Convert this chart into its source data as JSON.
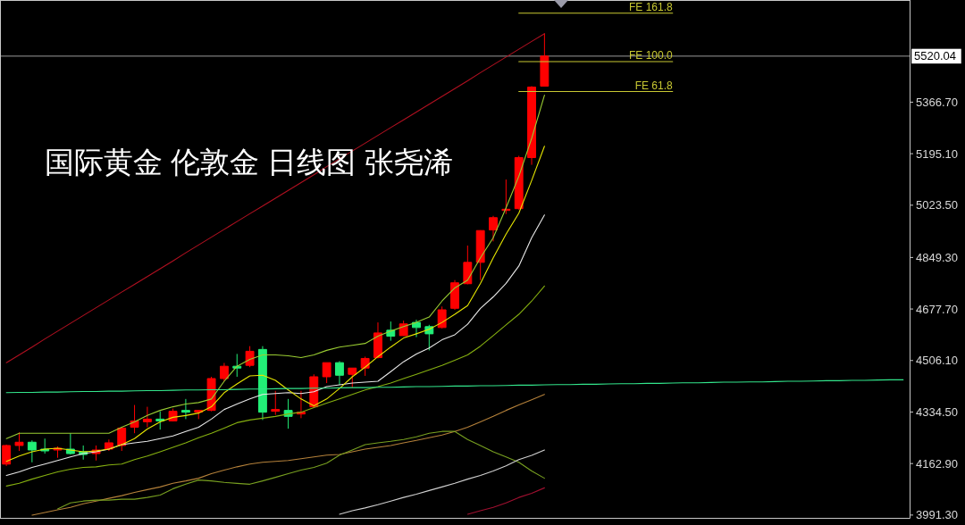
{
  "chart_data": {
    "type": "candlestick",
    "title": "国际黄金 伦敦金 日线图 张尧浠",
    "categories": [
      null,
      null,
      null,
      null,
      null,
      null,
      null,
      null,
      null,
      null,
      null,
      null,
      null,
      null,
      null,
      null,
      null,
      null,
      null,
      null,
      null,
      null,
      null,
      null,
      null,
      null,
      null,
      null,
      null,
      null,
      null,
      null,
      null,
      null,
      null,
      null,
      null,
      null,
      null,
      null,
      null,
      null,
      null,
      null,
      null,
      null,
      null,
      null,
      null,
      null,
      null,
      null,
      null,
      null,
      null,
      null,
      null,
      null,
      null,
      null,
      null,
      null,
      null,
      null,
      null,
      null,
      null,
      null,
      null,
      null,
      null
    ],
    "ohlc": [
      [
        4161,
        4226,
        4155,
        4223
      ],
      [
        4223,
        4267,
        4205,
        4234
      ],
      [
        4234,
        4240,
        4167,
        4208
      ],
      [
        4211,
        4246,
        4196,
        4205
      ],
      [
        4208,
        4220,
        4182,
        4214
      ],
      [
        4211,
        4264,
        4193,
        4196
      ],
      [
        4202,
        4223,
        4176,
        4193
      ],
      [
        4196,
        4223,
        4173,
        4208
      ],
      [
        4211,
        4243,
        4205,
        4232
      ],
      [
        4223,
        4284,
        4205,
        4281
      ],
      [
        4284,
        4358,
        4264,
        4305
      ],
      [
        4302,
        4352,
        4284,
        4311
      ],
      [
        4311,
        4337,
        4276,
        4305
      ],
      [
        4305,
        4346,
        4303,
        4337
      ],
      [
        4340,
        4378,
        4311,
        4334
      ],
      [
        4334,
        4340,
        4311,
        4340
      ],
      [
        4340,
        4452,
        4337,
        4446
      ],
      [
        4446,
        4498,
        4437,
        4487
      ],
      [
        4487,
        4528,
        4452,
        4481
      ],
      [
        4490,
        4554,
        4484,
        4537
      ],
      [
        4543,
        4554,
        4308,
        4334
      ],
      [
        4337,
        4405,
        4325,
        4343
      ],
      [
        4340,
        4378,
        4279,
        4320
      ],
      [
        4328,
        4405,
        4314,
        4334
      ],
      [
        4352,
        4460,
        4349,
        4452
      ],
      [
        4452,
        4499,
        4431,
        4499
      ],
      [
        4499,
        4504,
        4425,
        4457
      ],
      [
        4460,
        4481,
        4416,
        4481
      ],
      [
        4481,
        4519,
        4455,
        4513
      ],
      [
        4516,
        4633,
        4513,
        4598
      ],
      [
        4607,
        4636,
        4572,
        4587
      ],
      [
        4589,
        4639,
        4588,
        4628
      ],
      [
        4633,
        4642,
        4584,
        4616
      ],
      [
        4619,
        4625,
        4540,
        4595
      ],
      [
        4616,
        4686,
        4613,
        4675
      ],
      [
        4680,
        4774,
        4675,
        4765
      ],
      [
        4762,
        4889,
        4760,
        4833
      ],
      [
        4833,
        4940,
        4774,
        4939
      ],
      [
        4941,
        4988,
        4903,
        4982
      ],
      [
        5006,
        5109,
        4994,
        5010
      ],
      [
        5012,
        5188,
        5009,
        5182
      ],
      [
        5182,
        5420,
        5158,
        5417
      ],
      [
        5420,
        5595,
        5419,
        5520.04
      ],
      null,
      null,
      null,
      null,
      null,
      null,
      null,
      null,
      null,
      null,
      null,
      null,
      null,
      null,
      null,
      null,
      null,
      null,
      null,
      null,
      null,
      null,
      null,
      null,
      null,
      null,
      null,
      null
    ],
    "colors": [
      "#ff0000",
      "#ff0000",
      "#22ee77",
      "#22ee77",
      "#ff0000",
      "#22ee77",
      "#22ee77",
      "#ff0000",
      "#ff0000",
      "#ff0000",
      "#ff0000",
      "#ff0000",
      "#22ee77",
      "#ff0000",
      "#22ee77",
      "#ff0000",
      "#ff0000",
      "#ff0000",
      "#22ee77",
      "#ff0000",
      "#22ee77",
      "#ff0000",
      "#22ee77",
      "#ff0000",
      "#ff0000",
      "#ff0000",
      "#22ee77",
      "#ff0000",
      "#ff0000",
      "#ff0000",
      "#22ee77",
      "#ff0000",
      "#22ee77",
      "#22ee77",
      "#ff0000",
      "#ff0000",
      "#ff0000",
      "#ff0000",
      "#ff0000",
      "#ff0000",
      "#ff0000",
      "#ff0000",
      "#ff0000",
      null,
      null,
      null,
      null,
      null,
      null,
      null,
      null,
      null,
      null,
      null,
      null,
      null,
      null,
      null,
      null,
      null,
      null,
      null,
      null,
      null,
      null,
      null,
      null,
      null,
      null,
      null,
      null
    ],
    "series": [
      {
        "type": "line",
        "color": "#b5813a",
        "values": [
          null,
          null,
          3991,
          4000,
          4009,
          4017,
          4029,
          4038,
          4047,
          4056,
          4067,
          4076,
          4085,
          4097,
          4105,
          4114,
          4129,
          4141,
          4152,
          4161,
          4167,
          4170,
          4173,
          4179,
          4185,
          4191,
          4193,
          4202,
          4211,
          4217,
          4223,
          4232,
          4240,
          4249,
          4258,
          4270,
          4284,
          4302,
          4320,
          4340,
          4358,
          4375,
          4393,
          null,
          null,
          null,
          null,
          null,
          null,
          null,
          null,
          null,
          null,
          null,
          null,
          null,
          null,
          null,
          null,
          null,
          null,
          null,
          null,
          null,
          null,
          null,
          null,
          null,
          null,
          null,
          null
        ]
      },
      {
        "type": "line",
        "color": "#78a020",
        "values": [
          null,
          null,
          null,
          null,
          4012,
          4032,
          4038,
          4041,
          4041,
          4044,
          4044,
          4050,
          4058,
          4079,
          4094,
          4108,
          4105,
          4100,
          4097,
          4094,
          4105,
          4117,
          4129,
          4141,
          4150,
          4164,
          4191,
          4208,
          4226,
          4232,
          4237,
          4243,
          4252,
          4264,
          4270,
          4270,
          4243,
          4223,
          4202,
          4185,
          4167,
          4138,
          4114,
          null,
          null,
          null,
          null,
          null,
          null,
          null,
          null,
          null,
          null,
          null,
          null,
          null,
          null,
          null,
          null,
          null,
          null,
          null,
          null,
          null,
          null,
          null,
          null,
          null,
          null,
          null,
          null
        ]
      },
      {
        "type": "line",
        "color": "#d0d0d0",
        "values": [
          null,
          null,
          null,
          null,
          null,
          null,
          null,
          null,
          null,
          null,
          null,
          null,
          null,
          null,
          null,
          null,
          null,
          null,
          null,
          null,
          null,
          null,
          null,
          null,
          null,
          null,
          3994,
          4006,
          4015,
          4026,
          4038,
          4050,
          4061,
          4073,
          4085,
          4097,
          4111,
          4123,
          4138,
          4155,
          4176,
          4190,
          4208,
          null,
          null,
          null,
          null,
          null,
          null,
          null,
          null,
          null,
          null,
          null,
          null,
          null,
          null,
          null,
          null,
          null,
          null,
          null,
          null,
          null,
          null,
          null,
          null,
          null,
          null,
          null,
          null
        ]
      },
      {
        "type": "line",
        "color": "#a01030",
        "values": [
          null,
          null,
          null,
          null,
          null,
          null,
          null,
          null,
          null,
          null,
          null,
          null,
          null,
          null,
          null,
          null,
          null,
          null,
          null,
          null,
          null,
          null,
          null,
          null,
          null,
          null,
          null,
          null,
          null,
          null,
          null,
          null,
          null,
          null,
          null,
          null,
          3994,
          4006,
          4017,
          4032,
          4050,
          4064,
          4082,
          null,
          null,
          null,
          null,
          null,
          null,
          null,
          null,
          null,
          null,
          null,
          null,
          null,
          null,
          null,
          null,
          null,
          null,
          null,
          null,
          null,
          null,
          null,
          null,
          null,
          null,
          null,
          null
        ]
      },
      {
        "type": "line",
        "color": "#86b010",
        "values": [
          4088,
          4097,
          4111,
          4123,
          4135,
          4144,
          4150,
          4152,
          4158,
          4161,
          4176,
          4188,
          4202,
          4217,
          4232,
          4249,
          4264,
          4281,
          4299,
          4308,
          4314,
          4320,
          4328,
          4334,
          4349,
          4364,
          4378,
          4393,
          4408,
          4419,
          4431,
          4446,
          4460,
          4475,
          4490,
          4507,
          4525,
          4554,
          4589,
          4625,
          4660,
          4704,
          4754,
          null,
          null,
          null,
          null,
          null,
          null,
          null,
          null,
          null,
          null,
          null,
          null,
          null,
          null,
          null,
          null,
          null,
          null,
          null,
          null,
          null,
          null,
          null,
          null,
          null,
          null,
          null,
          null
        ]
      },
      {
        "type": "line",
        "color": "#e8e8e8",
        "values": [
          4123,
          4135,
          4150,
          4161,
          4173,
          4185,
          4196,
          4202,
          4211,
          4226,
          4232,
          4237,
          4246,
          4255,
          4270,
          4284,
          4311,
          4343,
          4361,
          4378,
          4393,
          4396,
          4399,
          4396,
          4402,
          4419,
          4425,
          4431,
          4434,
          4437,
          4469,
          4502,
          4528,
          4548,
          4575,
          4592,
          4627,
          4680,
          4718,
          4763,
          4821,
          4915,
          4991,
          null,
          null,
          null,
          null,
          null,
          null,
          null,
          null,
          null,
          null,
          null,
          null,
          null,
          null,
          null,
          null,
          null,
          null,
          null,
          null,
          null,
          null,
          null,
          null,
          null,
          null,
          null,
          null
        ]
      },
      {
        "type": "line",
        "color": "#9acd32",
        "values": [
          4246,
          4264,
          4264,
          4264,
          4264,
          4264,
          4264,
          4264,
          4264,
          4284,
          4302,
          4323,
          4340,
          4352,
          4361,
          4366,
          4378,
          4437,
          4487,
          4510,
          4525,
          4525,
          4522,
          4516,
          4525,
          4540,
          4551,
          4557,
          4563,
          4587,
          4604,
          4619,
          4633,
          4651,
          4704,
          4748,
          4774,
          4848,
          4915,
          5015,
          5120,
          5246,
          5390,
          null,
          null,
          null,
          null,
          null,
          null,
          null,
          null,
          null,
          null,
          null,
          null,
          null,
          null,
          null,
          null,
          null,
          null,
          null,
          null,
          null,
          null,
          null,
          null,
          null,
          null,
          null,
          null
        ]
      },
      {
        "type": "line",
        "color": "#e6e600",
        "values": [
          4170,
          4188,
          4202,
          4211,
          4214,
          4208,
          4202,
          4205,
          4211,
          4226,
          4246,
          4278,
          4302,
          4317,
          4323,
          4331,
          4352,
          4399,
          4428,
          4455,
          4457,
          4440,
          4408,
          4378,
          4355,
          4378,
          4413,
          4452,
          4484,
          4519,
          4551,
          4581,
          4595,
          4610,
          4633,
          4660,
          4689,
          4763,
          4848,
          4927,
          4997,
          5106,
          5220,
          null,
          null,
          null,
          null,
          null,
          null,
          null,
          null,
          null,
          null,
          null,
          null,
          null,
          null,
          null,
          null,
          null,
          null,
          null,
          null,
          null,
          null,
          null,
          null,
          null,
          null,
          null,
          null
        ]
      },
      {
        "type": "line",
        "color": "#33e68c",
        "values": [
          4399,
          4400,
          4400,
          4401,
          4401,
          4402,
          4403,
          4403,
          4404,
          4404,
          4405,
          4406,
          4406,
          4407,
          4408,
          4408,
          4409,
          4409,
          4410,
          4411,
          4411,
          4412,
          4413,
          4413,
          4414,
          4414,
          4415,
          4416,
          4416,
          4417,
          4417,
          4418,
          4419,
          4419,
          4420,
          4421,
          4421,
          4422,
          4422,
          4423,
          4424,
          4424,
          4425,
          4426,
          4426,
          4427,
          4427,
          4428,
          4429,
          4429,
          4430,
          4430,
          4431,
          4432,
          4432,
          4433,
          4434,
          4434,
          4435,
          4435,
          4436,
          4437,
          4437,
          4438,
          4439,
          4439,
          4440,
          4440,
          4441,
          4442,
          4442
        ]
      },
      {
        "type": "line",
        "color": "#b01020",
        "values": [
          4499,
          4525,
          4551,
          4578,
          4604,
          4630,
          4656,
          4682,
          4708,
          4734,
          4760,
          4786,
          4812,
          4838,
          4865,
          4891,
          4917,
          4943,
          4969,
          4995,
          5021,
          5047,
          5073,
          5099,
          5125,
          5152,
          5178,
          5204,
          5230,
          5256,
          5282,
          5308,
          5334,
          5360,
          5386,
          5412,
          5438,
          5465,
          5491,
          5517,
          5543,
          5569,
          5595,
          null,
          null,
          null,
          null,
          null,
          null,
          null,
          null,
          null,
          null,
          null,
          null,
          null,
          null,
          null,
          null,
          null,
          null,
          null,
          null,
          null,
          null,
          null,
          null,
          null,
          null,
          null,
          null
        ]
      },
      {
        "type": "line",
        "name": "FE 161.8",
        "color": "#c8c832",
        "values": [
          null,
          null,
          null,
          null,
          null,
          null,
          null,
          null,
          null,
          null,
          null,
          null,
          null,
          null,
          null,
          null,
          null,
          null,
          null,
          null,
          null,
          null,
          null,
          null,
          null,
          null,
          null,
          null,
          null,
          null,
          null,
          null,
          null,
          null,
          null,
          null,
          null,
          null,
          null,
          null,
          5663,
          5663,
          5663,
          5663,
          5663,
          5663,
          5663,
          5663,
          5663,
          5663,
          5663,
          5663,
          5663,
          null,
          null,
          null,
          null,
          null,
          null,
          null,
          null,
          null,
          null,
          null,
          null,
          null,
          null,
          null,
          null,
          null,
          null
        ]
      },
      {
        "type": "line",
        "name": "FE 100.0",
        "color": "#c8c832",
        "values": [
          null,
          null,
          null,
          null,
          null,
          null,
          null,
          null,
          null,
          null,
          null,
          null,
          null,
          null,
          null,
          null,
          null,
          null,
          null,
          null,
          null,
          null,
          null,
          null,
          null,
          null,
          null,
          null,
          null,
          null,
          null,
          null,
          null,
          null,
          null,
          null,
          null,
          null,
          null,
          null,
          5502,
          5502,
          5502,
          5502,
          5502,
          5502,
          5502,
          5502,
          5502,
          5502,
          5502,
          5502,
          5502,
          null,
          null,
          null,
          null,
          null,
          null,
          null,
          null,
          null,
          null,
          null,
          null,
          null,
          null,
          null,
          null,
          null,
          null
        ]
      },
      {
        "type": "line",
        "name": "FE 61.8",
        "color": "#c8c832",
        "values": [
          null,
          null,
          null,
          null,
          null,
          null,
          null,
          null,
          null,
          null,
          null,
          null,
          null,
          null,
          null,
          null,
          null,
          null,
          null,
          null,
          null,
          null,
          null,
          null,
          null,
          null,
          null,
          null,
          null,
          null,
          null,
          null,
          null,
          null,
          null,
          null,
          null,
          null,
          null,
          null,
          5402,
          5402,
          5402,
          5402,
          5402,
          5402,
          5402,
          5402,
          5402,
          5402,
          5402,
          5402,
          5402,
          null,
          null,
          null,
          null,
          null,
          null,
          null,
          null,
          null,
          null,
          null,
          null,
          null,
          null,
          null,
          null,
          null,
          null
        ]
      }
    ],
    "ref_lines": [
      {
        "axis": "y",
        "value": 5520.04,
        "label": "5520.04",
        "color": "#9a9a9a"
      }
    ],
    "ylim": [
      3982,
      5707
    ],
    "yticks": [
      {
        "value": 3991.3,
        "label": "3991.30"
      },
      {
        "value": 4162.9,
        "label": "4162.90"
      },
      {
        "value": 4334.5,
        "label": "4334.50"
      },
      {
        "value": 4506.1,
        "label": "4506.10"
      },
      {
        "value": 4677.7,
        "label": "4677.70"
      },
      {
        "value": 4849.3,
        "label": "4849.30"
      },
      {
        "value": 5023.5,
        "label": "5023.50"
      },
      {
        "value": 5195.1,
        "label": "5195.10"
      },
      {
        "value": 5366.7,
        "label": "5366.70"
      }
    ],
    "tick_labels": "y"
  }
}
